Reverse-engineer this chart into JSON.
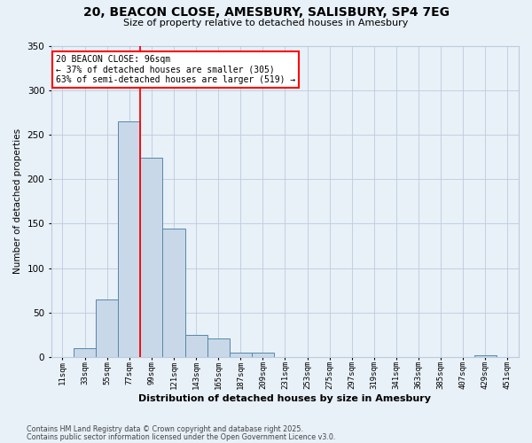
{
  "title_line1": "20, BEACON CLOSE, AMESBURY, SALISBURY, SP4 7EG",
  "title_line2": "Size of property relative to detached houses in Amesbury",
  "xlabel": "Distribution of detached houses by size in Amesbury",
  "ylabel": "Number of detached properties",
  "bin_labels": [
    "11sqm",
    "33sqm",
    "55sqm",
    "77sqm",
    "99sqm",
    "121sqm",
    "143sqm",
    "165sqm",
    "187sqm",
    "209sqm",
    "231sqm",
    "253sqm",
    "275sqm",
    "297sqm",
    "319sqm",
    "341sqm",
    "363sqm",
    "385sqm",
    "407sqm",
    "429sqm",
    "451sqm"
  ],
  "bin_values": [
    0,
    10,
    65,
    265,
    224,
    144,
    25,
    21,
    5,
    5,
    0,
    0,
    0,
    0,
    0,
    0,
    0,
    0,
    0,
    2,
    0
  ],
  "bar_color": "#c8d8e8",
  "bar_edge_color": "#5588aa",
  "grid_color": "#bbccdd",
  "background_color": "#e8f0f8",
  "vline_color": "red",
  "vline_position": 3.5,
  "annotation_text": "20 BEACON CLOSE: 96sqm\n← 37% of detached houses are smaller (305)\n63% of semi-detached houses are larger (519) →",
  "annotation_box_color": "white",
  "annotation_box_edge": "red",
  "ylim": [
    0,
    350
  ],
  "yticks": [
    0,
    50,
    100,
    150,
    200,
    250,
    300,
    350
  ],
  "footer_line1": "Contains HM Land Registry data © Crown copyright and database right 2025.",
  "footer_line2": "Contains public sector information licensed under the Open Government Licence v3.0."
}
